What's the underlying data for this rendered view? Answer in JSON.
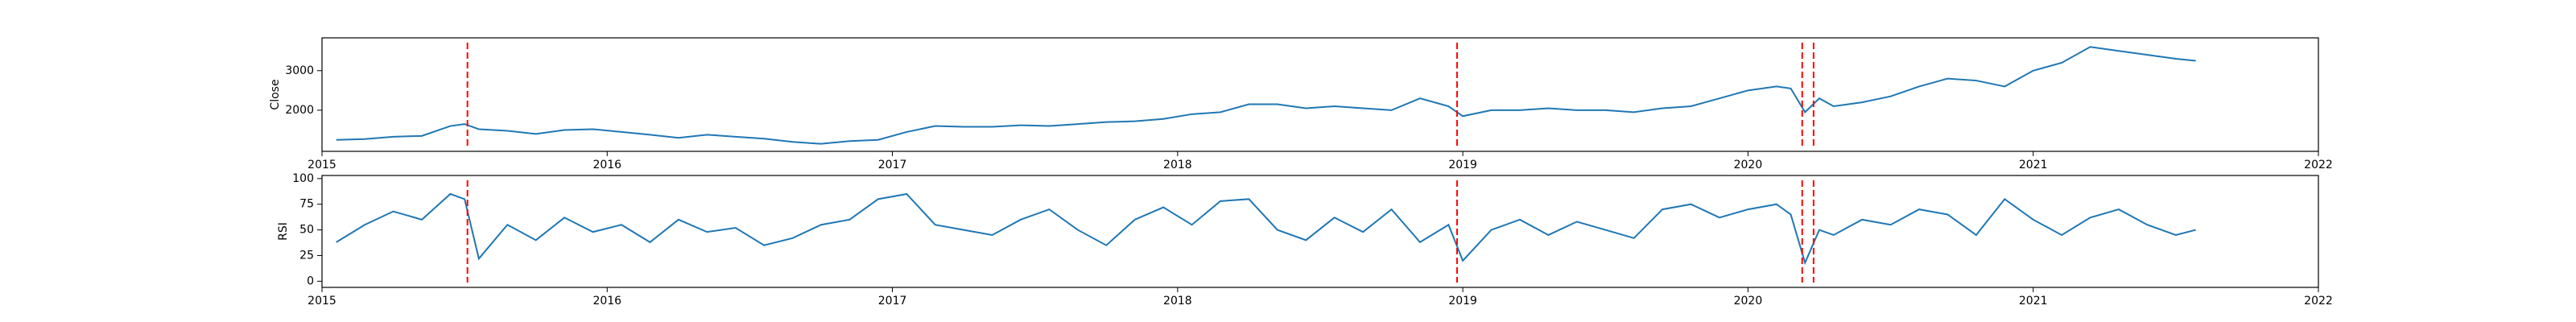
{
  "chart_data": [
    {
      "type": "line",
      "y_label": "Close",
      "x": [
        2015.05,
        2015.15,
        2015.25,
        2015.35,
        2015.45,
        2015.5,
        2015.55,
        2015.65,
        2015.75,
        2015.85,
        2015.95,
        2016.05,
        2016.15,
        2016.25,
        2016.35,
        2016.45,
        2016.55,
        2016.65,
        2016.75,
        2016.85,
        2016.95,
        2017.05,
        2017.15,
        2017.25,
        2017.35,
        2017.45,
        2017.55,
        2017.65,
        2017.75,
        2017.85,
        2017.95,
        2018.05,
        2018.15,
        2018.25,
        2018.35,
        2018.45,
        2018.55,
        2018.65,
        2018.75,
        2018.85,
        2018.95,
        2019.0,
        2019.1,
        2019.2,
        2019.3,
        2019.4,
        2019.5,
        2019.6,
        2019.7,
        2019.8,
        2019.9,
        2020.0,
        2020.1,
        2020.15,
        2020.2,
        2020.25,
        2020.3,
        2020.4,
        2020.5,
        2020.6,
        2020.7,
        2020.8,
        2020.9,
        2021.0,
        2021.1,
        2021.2,
        2021.3,
        2021.4,
        2021.5,
        2021.57
      ],
      "series": [
        {
          "color": "#1f77b4",
          "values": [
            1250,
            1270,
            1330,
            1350,
            1600,
            1650,
            1520,
            1480,
            1400,
            1500,
            1520,
            1450,
            1380,
            1300,
            1380,
            1330,
            1280,
            1200,
            1150,
            1220,
            1250,
            1450,
            1600,
            1580,
            1580,
            1620,
            1600,
            1650,
            1700,
            1720,
            1780,
            1900,
            1950,
            2150,
            2150,
            2050,
            2100,
            2050,
            2000,
            2300,
            2100,
            1850,
            2000,
            2000,
            2050,
            2000,
            2000,
            1950,
            2050,
            2100,
            2300,
            2500,
            2600,
            2550,
            1950,
            2300,
            2100,
            2200,
            2350,
            2600,
            2800,
            2750,
            2600,
            3000,
            3200,
            3600,
            3500,
            3400,
            3300,
            3250
          ]
        }
      ],
      "xlim": [
        2015,
        2022
      ],
      "xticks": [
        2015,
        2016,
        2017,
        2018,
        2019,
        2020,
        2021,
        2022
      ],
      "ylim": [
        960,
        3830
      ],
      "yticks": [
        2000,
        3000
      ],
      "vlines": [
        2015.51,
        2018.98,
        2020.19,
        2020.23
      ],
      "vline_color": "#ff0000"
    },
    {
      "type": "line",
      "y_label": "RSI",
      "x": [
        2015.05,
        2015.15,
        2015.25,
        2015.35,
        2015.45,
        2015.5,
        2015.55,
        2015.65,
        2015.75,
        2015.85,
        2015.95,
        2016.05,
        2016.15,
        2016.25,
        2016.35,
        2016.45,
        2016.55,
        2016.65,
        2016.75,
        2016.85,
        2016.95,
        2017.05,
        2017.15,
        2017.25,
        2017.35,
        2017.45,
        2017.55,
        2017.65,
        2017.75,
        2017.85,
        2017.95,
        2018.05,
        2018.15,
        2018.25,
        2018.35,
        2018.45,
        2018.55,
        2018.65,
        2018.75,
        2018.85,
        2018.95,
        2019.0,
        2019.1,
        2019.2,
        2019.3,
        2019.4,
        2019.5,
        2019.6,
        2019.7,
        2019.8,
        2019.9,
        2020.0,
        2020.1,
        2020.15,
        2020.2,
        2020.25,
        2020.3,
        2020.4,
        2020.5,
        2020.6,
        2020.7,
        2020.8,
        2020.9,
        2021.0,
        2021.1,
        2021.2,
        2021.3,
        2021.4,
        2021.5,
        2021.57
      ],
      "series": [
        {
          "color": "#1f77b4",
          "values": [
            38,
            55,
            68,
            60,
            85,
            80,
            22,
            55,
            40,
            62,
            48,
            55,
            38,
            60,
            48,
            52,
            35,
            42,
            55,
            60,
            80,
            85,
            55,
            50,
            45,
            60,
            70,
            50,
            35,
            60,
            72,
            55,
            78,
            80,
            50,
            40,
            62,
            48,
            70,
            38,
            55,
            20,
            50,
            60,
            45,
            58,
            50,
            42,
            70,
            75,
            62,
            70,
            75,
            65,
            18,
            50,
            45,
            60,
            55,
            70,
            65,
            45,
            80,
            60,
            45,
            62,
            70,
            55,
            45,
            50
          ]
        }
      ],
      "xlim": [
        2015,
        2022
      ],
      "xticks": [
        2015,
        2016,
        2017,
        2018,
        2019,
        2020,
        2021,
        2022
      ],
      "ylim": [
        -6,
        103
      ],
      "yticks": [
        0,
        25,
        50,
        75,
        100
      ],
      "vlines": [
        2015.51,
        2018.98,
        2020.19,
        2020.23
      ],
      "vline_color": "#ff0000"
    }
  ]
}
